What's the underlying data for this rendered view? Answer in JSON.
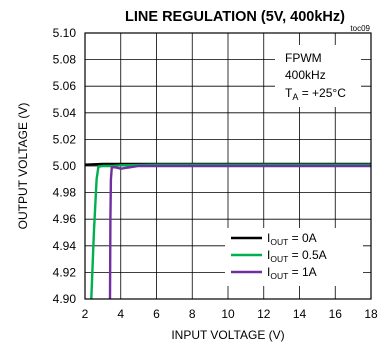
{
  "chart_data": {
    "type": "line",
    "title": "LINE REGULATION (5V, 400kHz)",
    "figure_code": "toc09",
    "xlabel": "INPUT VOLTAGE (V)",
    "ylabel": "OUTPUT VOLTAGE (V)",
    "xlim": [
      2,
      18
    ],
    "ylim": [
      4.9,
      5.1
    ],
    "x_ticks": [
      "2",
      "4",
      "6",
      "8",
      "10",
      "12",
      "14",
      "16",
      "18"
    ],
    "y_ticks": [
      "4.90",
      "4.92",
      "4.94",
      "4.96",
      "4.98",
      "5.00",
      "5.02",
      "5.04",
      "5.06",
      "5.08",
      "5.10"
    ],
    "grid": true,
    "annotation": {
      "line1": "FPWM",
      "line2": "400kHz",
      "line3_prefix": "T",
      "line3_sub": "A",
      "line3_suffix": " = +25°C"
    },
    "legend_position": "bottom-right",
    "series": [
      {
        "name": "IOUT = 0A",
        "label_main": "I",
        "label_sub": "OUT",
        "label_rest": " = 0A",
        "color": "#000000",
        "points": [
          [
            2.0,
            5.001
          ],
          [
            3.0,
            5.0015
          ],
          [
            4.0,
            5.0015
          ],
          [
            6.0,
            5.0015
          ],
          [
            8.0,
            5.0015
          ],
          [
            10.0,
            5.0015
          ],
          [
            12.0,
            5.0015
          ],
          [
            14.0,
            5.0015
          ],
          [
            16.0,
            5.0015
          ],
          [
            18.0,
            5.0015
          ]
        ]
      },
      {
        "name": "IOUT = 0.5A",
        "label_main": "I",
        "label_sub": "OUT",
        "label_rest": " = 0.5A",
        "color": "#00b050",
        "points": [
          [
            2.35,
            4.9
          ],
          [
            2.5,
            4.95
          ],
          [
            2.65,
            4.99
          ],
          [
            2.75,
            4.9995
          ],
          [
            3.0,
            5.0
          ],
          [
            3.5,
            5.0
          ],
          [
            4.0,
            5.0005
          ],
          [
            6.0,
            5.001
          ],
          [
            8.0,
            5.001
          ],
          [
            10.0,
            5.001
          ],
          [
            12.0,
            5.001
          ],
          [
            14.0,
            5.001
          ],
          [
            16.0,
            5.001
          ],
          [
            18.0,
            5.001
          ]
        ]
      },
      {
        "name": "IOUT = 1A",
        "label_main": "I",
        "label_sub": "OUT",
        "label_rest": " = 1A",
        "color": "#7030a0",
        "points": [
          [
            3.4,
            4.9
          ],
          [
            3.42,
            4.96
          ],
          [
            3.45,
            4.99
          ],
          [
            3.5,
            4.999
          ],
          [
            3.7,
            4.999
          ],
          [
            4.0,
            4.998
          ],
          [
            4.5,
            4.999
          ],
          [
            5.0,
            5.0
          ],
          [
            6.0,
            5.0
          ],
          [
            8.0,
            5.0
          ],
          [
            10.0,
            5.0
          ],
          [
            12.0,
            5.0
          ],
          [
            14.0,
            5.0
          ],
          [
            16.0,
            5.0
          ],
          [
            18.0,
            5.0
          ]
        ]
      }
    ]
  }
}
